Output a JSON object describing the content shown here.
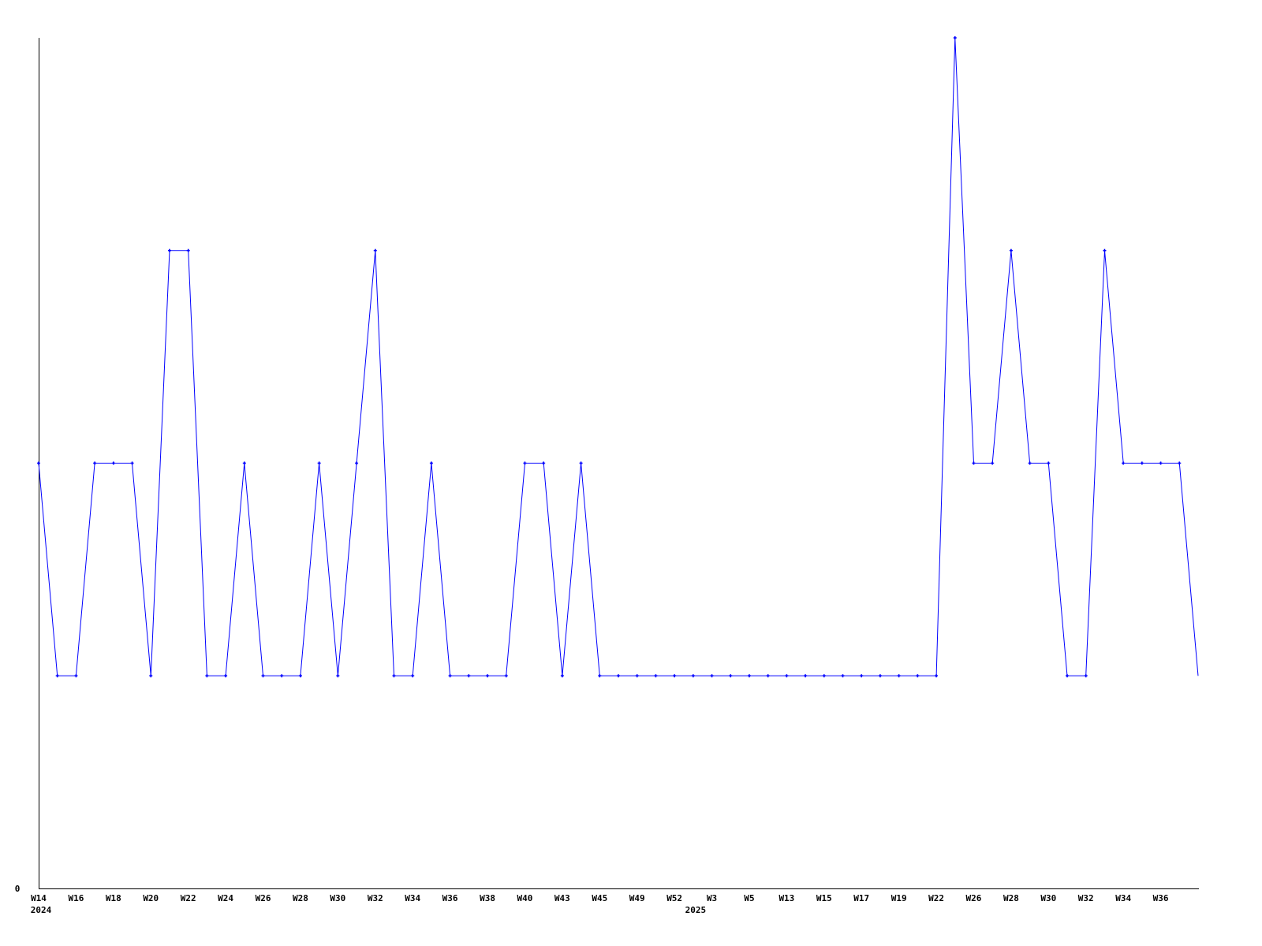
{
  "chart_data": {
    "type": "line",
    "title": "",
    "xlabel": "",
    "ylabel": "",
    "ylim": [
      0,
      4
    ],
    "grid": false,
    "legend": "none",
    "y_tick_labels": [
      {
        "value": 0,
        "label": "0"
      }
    ],
    "x_tick_labels": [
      {
        "index": 0,
        "label": "W14"
      },
      {
        "index": 2,
        "label": "W16"
      },
      {
        "index": 4,
        "label": "W18"
      },
      {
        "index": 6,
        "label": "W20"
      },
      {
        "index": 8,
        "label": "W22"
      },
      {
        "index": 10,
        "label": "W24"
      },
      {
        "index": 12,
        "label": "W26"
      },
      {
        "index": 14,
        "label": "W28"
      },
      {
        "index": 16,
        "label": "W30"
      },
      {
        "index": 18,
        "label": "W32"
      },
      {
        "index": 20,
        "label": "W34"
      },
      {
        "index": 22,
        "label": "W36"
      },
      {
        "index": 24,
        "label": "W38"
      },
      {
        "index": 26,
        "label": "W40"
      },
      {
        "index": 28,
        "label": "W43"
      },
      {
        "index": 30,
        "label": "W45"
      },
      {
        "index": 32,
        "label": "W49"
      },
      {
        "index": 34,
        "label": "W52"
      },
      {
        "index": 36,
        "label": "W3"
      },
      {
        "index": 38,
        "label": "W5"
      },
      {
        "index": 40,
        "label": "W13"
      },
      {
        "index": 42,
        "label": "W15"
      },
      {
        "index": 44,
        "label": "W17"
      },
      {
        "index": 46,
        "label": "W19"
      },
      {
        "index": 48,
        "label": "W22"
      },
      {
        "index": 50,
        "label": "W26"
      },
      {
        "index": 52,
        "label": "W28"
      },
      {
        "index": 54,
        "label": "W30"
      },
      {
        "index": 56,
        "label": "W32"
      },
      {
        "index": 58,
        "label": "W34"
      },
      {
        "index": 60,
        "label": "W36"
      }
    ],
    "year_labels": [
      {
        "index": 0,
        "label": "2024"
      },
      {
        "index": 35,
        "label": "2025"
      }
    ],
    "series": [
      {
        "color": "#0000ff",
        "values": [
          2,
          1,
          1,
          2,
          2,
          2,
          1,
          3,
          3,
          1,
          1,
          2,
          1,
          1,
          1,
          2,
          1,
          2,
          3,
          1,
          1,
          2,
          1,
          1,
          1,
          1,
          2,
          2,
          1,
          2,
          1,
          1,
          1,
          1,
          1,
          1,
          1,
          1,
          1,
          1,
          1,
          1,
          1,
          1,
          1,
          1,
          1,
          1,
          1,
          4,
          2,
          2,
          3,
          2,
          2,
          1,
          1,
          3,
          2,
          2,
          2,
          2,
          1
        ]
      }
    ]
  }
}
